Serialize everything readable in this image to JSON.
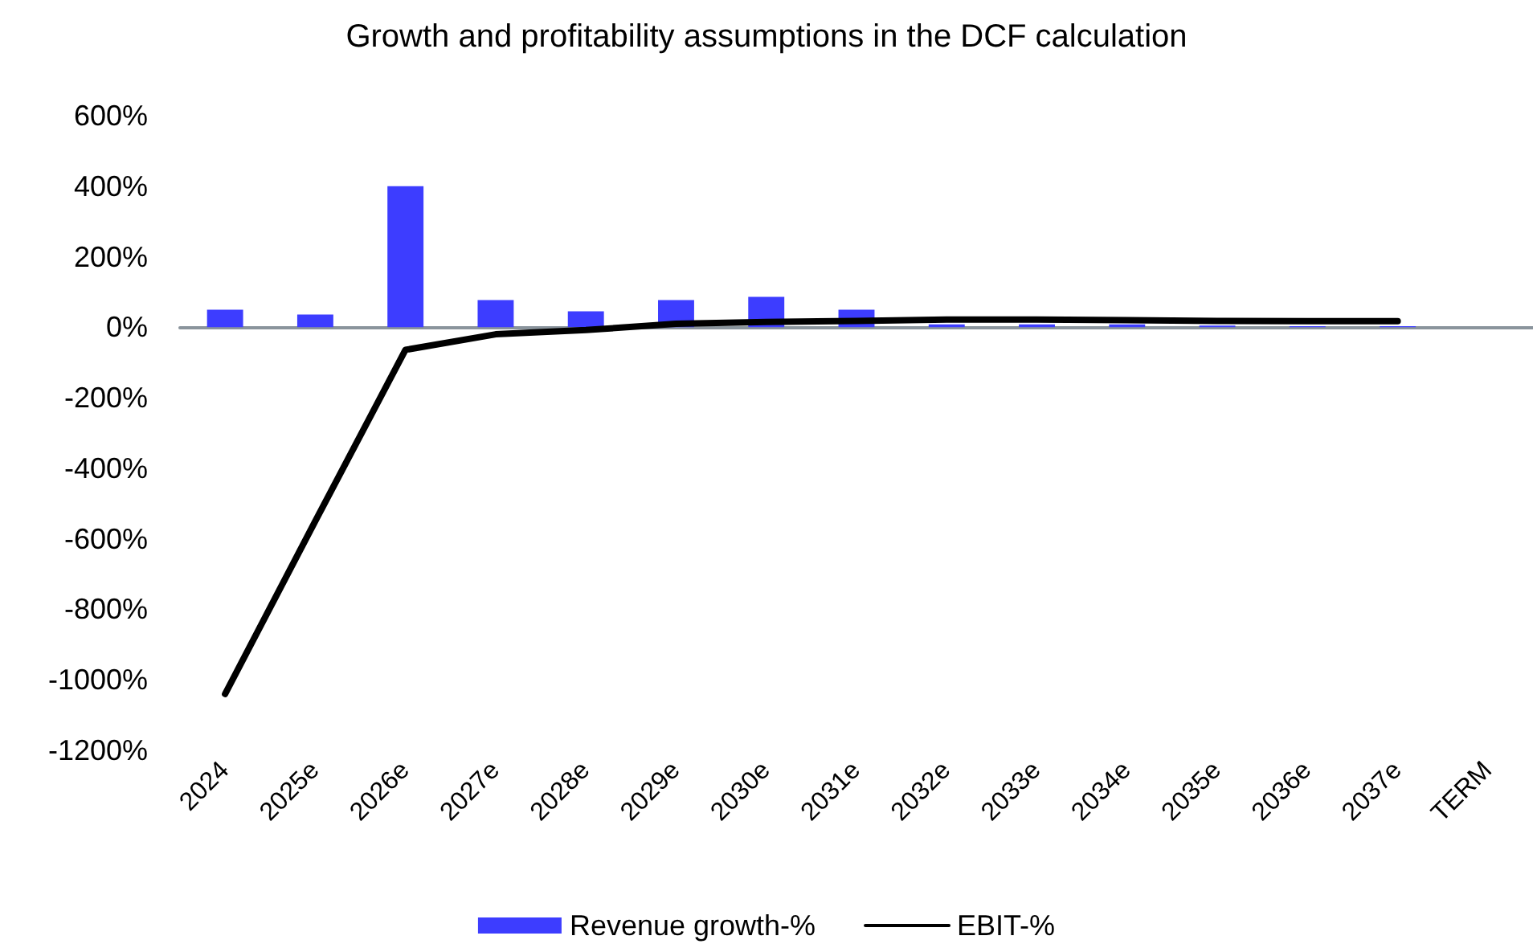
{
  "chart_data": {
    "type": "bar",
    "title": "Growth and profitability assumptions in the DCF calculation",
    "categories": [
      "2024",
      "2025e",
      "2026e",
      "2027e",
      "2028e",
      "2029e",
      "2030e",
      "2031e",
      "2032e",
      "2033e",
      "2034e",
      "2035e",
      "2036e",
      "2037e",
      "TERM"
    ],
    "series": [
      {
        "name": "Revenue growth-%",
        "color": "#3d3dff",
        "values": [
          50,
          36,
          400,
          77,
          45,
          77,
          86,
          50,
          8,
          8,
          8,
          5,
          3,
          3,
          null
        ]
      },
      {
        "name": "EBIT-%",
        "type": "line",
        "color": "#000000",
        "values": [
          -1040,
          -550,
          -64,
          -20,
          -8,
          10,
          15,
          18,
          22,
          22,
          20,
          18,
          17,
          17,
          null
        ]
      }
    ],
    "ylim": [
      -1200,
      600
    ],
    "yticks": [
      {
        "value": -1200,
        "label": "-1200%"
      },
      {
        "value": -1000,
        "label": "-1000%"
      },
      {
        "value": -800,
        "label": "-800%"
      },
      {
        "value": -600,
        "label": "-600%"
      },
      {
        "value": -400,
        "label": "-400%"
      },
      {
        "value": -200,
        "label": "-200%"
      },
      {
        "value": 0,
        "label": "0%"
      },
      {
        "value": 200,
        "label": "200%"
      },
      {
        "value": 400,
        "label": "400%"
      },
      {
        "value": 600,
        "label": "600%"
      }
    ],
    "legend": "bottom",
    "marker": "none",
    "line_style": "solid"
  }
}
